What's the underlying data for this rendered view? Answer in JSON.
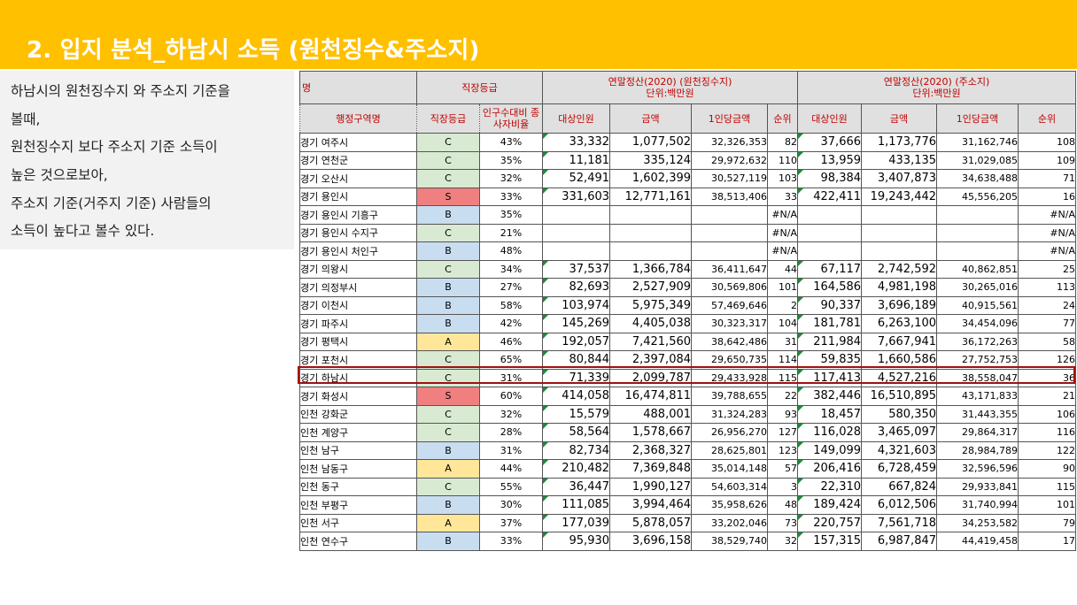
{
  "title": "2. 입지 분석_하남시 소득 (원천징수&주소지)",
  "description": [
    "하남시의 원천징수지 와 주소지 기준을",
    "볼때,",
    "원천징수지 보다 주소지 기준 소득이",
    "높은 것으로보아,",
    "주소지 기준(거주지 기준) 사람들의",
    "소득이 높다고 볼수 있다."
  ],
  "table": {
    "header1": {
      "col1": "행정구역명",
      "col2": "직장등급",
      "group1": "연말정산(2020) (원천징수지)",
      "group1_unit": "단위:백만원",
      "group2": "연말정산(2020) (주소지)",
      "group2_unit": "단위:백만원"
    },
    "header2": [
      "행정구역명",
      "직장등급",
      "인구수대비 종사자비율",
      "대상인원",
      "금액",
      "1인당금액",
      "순위",
      "대상인원",
      "금액",
      "1인당금액",
      "순위"
    ],
    "rows": [
      {
        "name": "경기 여주시",
        "grade": "C",
        "ratio": "43%",
        "w_people": "33,332",
        "w_amount": "1,077,502",
        "w_per": "32,326,353",
        "w_rank": "82",
        "r_people": "37,666",
        "r_amount": "1,173,776",
        "r_per": "31,162,746",
        "r_rank": "108"
      },
      {
        "name": "경기 연천군",
        "grade": "C",
        "ratio": "35%",
        "w_people": "11,181",
        "w_amount": "335,124",
        "w_per": "29,972,632",
        "w_rank": "110",
        "r_people": "13,959",
        "r_amount": "433,135",
        "r_per": "31,029,085",
        "r_rank": "109"
      },
      {
        "name": "경기 오산시",
        "grade": "C",
        "ratio": "32%",
        "w_people": "52,491",
        "w_amount": "1,602,399",
        "w_per": "30,527,119",
        "w_rank": "103",
        "r_people": "98,384",
        "r_amount": "3,407,873",
        "r_per": "34,638,488",
        "r_rank": "71"
      },
      {
        "name": "경기 용인시",
        "grade": "S",
        "ratio": "33%",
        "w_people": "331,603",
        "w_amount": "12,771,161",
        "w_per": "38,513,406",
        "w_rank": "33",
        "r_people": "422,411",
        "r_amount": "19,243,442",
        "r_per": "45,556,205",
        "r_rank": "16"
      },
      {
        "name": "경기 용인시 기흥구",
        "grade": "B",
        "ratio": "35%",
        "w_people": "",
        "w_amount": "",
        "w_per": "",
        "w_rank": "#N/A",
        "r_people": "",
        "r_amount": "",
        "r_per": "",
        "r_rank": "#N/A"
      },
      {
        "name": "경기 용인시 수지구",
        "grade": "C",
        "ratio": "21%",
        "w_people": "",
        "w_amount": "",
        "w_per": "",
        "w_rank": "#N/A",
        "r_people": "",
        "r_amount": "",
        "r_per": "",
        "r_rank": "#N/A"
      },
      {
        "name": "경기 용인시 처인구",
        "grade": "B",
        "ratio": "48%",
        "w_people": "",
        "w_amount": "",
        "w_per": "",
        "w_rank": "#N/A",
        "r_people": "",
        "r_amount": "",
        "r_per": "",
        "r_rank": "#N/A"
      },
      {
        "name": "경기 의왕시",
        "grade": "C",
        "ratio": "34%",
        "w_people": "37,537",
        "w_amount": "1,366,784",
        "w_per": "36,411,647",
        "w_rank": "44",
        "r_people": "67,117",
        "r_amount": "2,742,592",
        "r_per": "40,862,851",
        "r_rank": "25"
      },
      {
        "name": "경기 의정부시",
        "grade": "B",
        "ratio": "27%",
        "w_people": "82,693",
        "w_amount": "2,527,909",
        "w_per": "30,569,806",
        "w_rank": "101",
        "r_people": "164,586",
        "r_amount": "4,981,198",
        "r_per": "30,265,016",
        "r_rank": "113"
      },
      {
        "name": "경기 이천시",
        "grade": "B",
        "ratio": "58%",
        "w_people": "103,974",
        "w_amount": "5,975,349",
        "w_per": "57,469,646",
        "w_rank": "2",
        "r_people": "90,337",
        "r_amount": "3,696,189",
        "r_per": "40,915,561",
        "r_rank": "24"
      },
      {
        "name": "경기 파주시",
        "grade": "B",
        "ratio": "42%",
        "w_people": "145,269",
        "w_amount": "4,405,038",
        "w_per": "30,323,317",
        "w_rank": "104",
        "r_people": "181,781",
        "r_amount": "6,263,100",
        "r_per": "34,454,096",
        "r_rank": "77"
      },
      {
        "name": "경기 평택시",
        "grade": "A",
        "ratio": "46%",
        "w_people": "192,057",
        "w_amount": "7,421,560",
        "w_per": "38,642,486",
        "w_rank": "31",
        "r_people": "211,984",
        "r_amount": "7,667,941",
        "r_per": "36,172,263",
        "r_rank": "58"
      },
      {
        "name": "경기 포천시",
        "grade": "C",
        "ratio": "65%",
        "w_people": "80,844",
        "w_amount": "2,397,084",
        "w_per": "29,650,735",
        "w_rank": "114",
        "r_people": "59,835",
        "r_amount": "1,660,586",
        "r_per": "27,752,753",
        "r_rank": "126"
      },
      {
        "name": "경기 하남시",
        "grade": "C",
        "ratio": "31%",
        "w_people": "71,339",
        "w_amount": "2,099,787",
        "w_per": "29,433,928",
        "w_rank": "115",
        "r_people": "117,413",
        "r_amount": "4,527,216",
        "r_per": "38,558,047",
        "r_rank": "36"
      },
      {
        "name": "경기 화성시",
        "grade": "S",
        "ratio": "60%",
        "w_people": "414,058",
        "w_amount": "16,474,811",
        "w_per": "39,788,655",
        "w_rank": "22",
        "r_people": "382,446",
        "r_amount": "16,510,895",
        "r_per": "43,171,833",
        "r_rank": "21"
      },
      {
        "name": "인천 강화군",
        "grade": "C",
        "ratio": "32%",
        "w_people": "15,579",
        "w_amount": "488,001",
        "w_per": "31,324,283",
        "w_rank": "93",
        "r_people": "18,457",
        "r_amount": "580,350",
        "r_per": "31,443,355",
        "r_rank": "106"
      },
      {
        "name": "인천 계양구",
        "grade": "C",
        "ratio": "28%",
        "w_people": "58,564",
        "w_amount": "1,578,667",
        "w_per": "26,956,270",
        "w_rank": "127",
        "r_people": "116,028",
        "r_amount": "3,465,097",
        "r_per": "29,864,317",
        "r_rank": "116"
      },
      {
        "name": "인천 남구",
        "grade": "B",
        "ratio": "31%",
        "w_people": "82,734",
        "w_amount": "2,368,327",
        "w_per": "28,625,801",
        "w_rank": "123",
        "r_people": "149,099",
        "r_amount": "4,321,603",
        "r_per": "28,984,789",
        "r_rank": "122"
      },
      {
        "name": "인천 남동구",
        "grade": "A",
        "ratio": "44%",
        "w_people": "210,482",
        "w_amount": "7,369,848",
        "w_per": "35,014,148",
        "w_rank": "57",
        "r_people": "206,416",
        "r_amount": "6,728,459",
        "r_per": "32,596,596",
        "r_rank": "90"
      },
      {
        "name": "인천 동구",
        "grade": "C",
        "ratio": "55%",
        "w_people": "36,447",
        "w_amount": "1,990,127",
        "w_per": "54,603,314",
        "w_rank": "3",
        "r_people": "22,310",
        "r_amount": "667,824",
        "r_per": "29,933,841",
        "r_rank": "115"
      },
      {
        "name": "인천 부평구",
        "grade": "B",
        "ratio": "30%",
        "w_people": "111,085",
        "w_amount": "3,994,464",
        "w_per": "35,958,626",
        "w_rank": "48",
        "r_people": "189,424",
        "r_amount": "6,012,506",
        "r_per": "31,740,994",
        "r_rank": "101"
      },
      {
        "name": "인천 서구",
        "grade": "A",
        "ratio": "37%",
        "w_people": "177,039",
        "w_amount": "5,878,057",
        "w_per": "33,202,046",
        "w_rank": "73",
        "r_people": "220,757",
        "r_amount": "7,561,718",
        "r_per": "34,253,582",
        "r_rank": "79"
      },
      {
        "name": "인천 연수구",
        "grade": "B",
        "ratio": "33%",
        "w_people": "95,930",
        "w_amount": "3,696,158",
        "w_per": "38,529,740",
        "w_rank": "32",
        "r_people": "157,315",
        "r_amount": "6,987,847",
        "r_per": "44,419,458",
        "r_rank": "17"
      }
    ],
    "highlighted_row": "경기 하남시"
  },
  "colors": {
    "title_bar": "#ffc000",
    "grade_C": "#d9ead3",
    "grade_B": "#c9ddf0",
    "grade_A": "#ffe699",
    "grade_S": "#f08080",
    "header_text": "#c00000",
    "highlight_border": "#a01010"
  }
}
